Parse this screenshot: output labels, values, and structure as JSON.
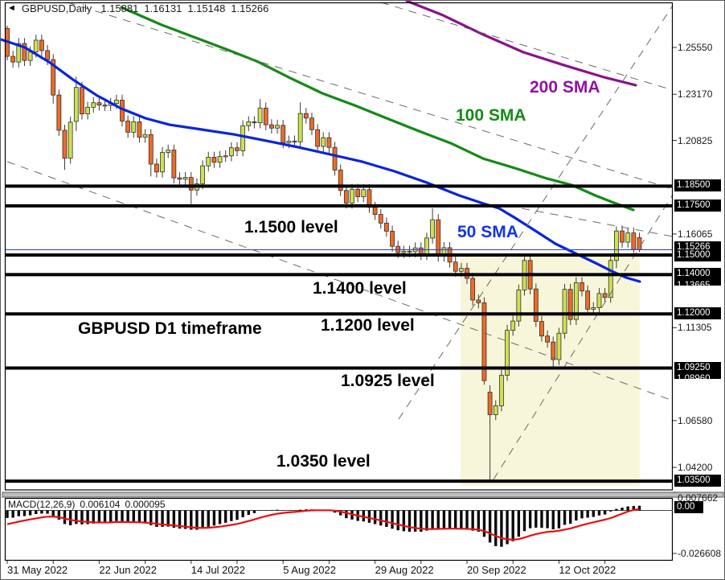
{
  "window": {
    "symbol_title": "GBPUSD,Daily",
    "open": "1.15881",
    "high": "1.16131",
    "low": "1.15148",
    "close": "1.15266"
  },
  "annotations": {
    "sma200_label": "200 SMA",
    "sma100_label": "100 SMA",
    "sma50_label": "50 SMA",
    "level_11500": "1.1500 level",
    "level_11400": "1.1400 level",
    "level_11200": "1.1200 level",
    "level_10925": "1.0925 level",
    "level_10350": "1.0350 level",
    "watermark": "GBPUSD D1 timeframe"
  },
  "colors": {
    "bull_candle": "#cde24e",
    "bear_candle": "#ee6b26",
    "candle_outline": "#2f2f2f",
    "wick": "#3a3a3a",
    "sma50": "#0b24dc",
    "sma100": "#168a16",
    "sma200": "#8b128b",
    "sma50_text": "#1434e4",
    "sma100_text": "#168a16",
    "sma200_text": "#9012a0",
    "level_line": "#000000",
    "current_price_line": "#2e46cf",
    "highlight": "#f8f6da",
    "trendline": "#6a6a6a",
    "macd_signal": "#e81010",
    "macd_bar": "#0a0a0a"
  },
  "price_axis": {
    "plain_ticks": [
      {
        "text": "1.25550",
        "price": 1.2555
      },
      {
        "text": "1.23170",
        "price": 1.2317
      },
      {
        "text": "1.20825",
        "price": 1.20825
      },
      {
        "text": "1.16065",
        "price": 1.16065
      },
      {
        "text": "1.11305",
        "price": 1.11305
      },
      {
        "text": "1.06580",
        "price": 1.0658
      },
      {
        "text": "1.04200",
        "price": 1.042
      }
    ],
    "boxed_labels": [
      {
        "text": "1.18500",
        "price": 1.185
      },
      {
        "text": "1.17500",
        "price": 1.175
      },
      {
        "text": "1.15266",
        "price": 1.15266,
        "dy": -10
      },
      {
        "text": "1.15000",
        "price": 1.15,
        "dy": -7
      },
      {
        "text": "1.14000",
        "price": 1.14
      },
      {
        "text": "1.13665",
        "price": 1.13665,
        "partial": true,
        "top": 347
      },
      {
        "text": "1.12000",
        "price": 1.12
      },
      {
        "text": "1.09250",
        "price": 1.0925
      },
      {
        "text": "1.08960",
        "price": 1.0896,
        "partial": true,
        "top": 463
      },
      {
        "text": "1.03500",
        "price": 1.035
      }
    ]
  },
  "time_axis": {
    "labels": [
      "31 May 2022",
      "22 Jun 2022",
      "14 Jul 2022",
      "5 Aug 2022",
      "29 Aug 2022",
      "20 Sep 2022",
      "12 Oct 2022"
    ],
    "tick_indices": [
      0,
      16,
      32,
      48,
      64,
      80,
      96
    ]
  },
  "macd_panel": {
    "name": "MACD(12,26,9)",
    "macd_value": "0.006104",
    "signal_value": "0.000095",
    "max_label": "0.007662",
    "zero_box": "0.00",
    "min_label": "-0.026608"
  },
  "chart_data": {
    "type": "candlestick",
    "symbol": "GBPUSD",
    "timeframe": "D1",
    "title": "GBPUSD Daily chart with 50/100/200 SMA, MACD(12,26,9), horizontal levels and trendlines",
    "ylim": [
      1.03,
      1.28
    ],
    "current_price": 1.15266,
    "price_levels": [
      1.185,
      1.175,
      1.15,
      1.14,
      1.12,
      1.0925,
      1.035
    ],
    "candles": [
      [
        1.2652,
        1.2666,
        1.249,
        1.251
      ],
      [
        1.251,
        1.2538,
        1.2453,
        1.2481
      ],
      [
        1.2481,
        1.2603,
        1.2453,
        1.2575
      ],
      [
        1.2575,
        1.2603,
        1.2461,
        1.2489
      ],
      [
        1.2489,
        1.256,
        1.2461,
        1.2532
      ],
      [
        1.2532,
        1.262,
        1.2504,
        1.2592
      ],
      [
        1.2592,
        1.262,
        1.2511,
        1.2539
      ],
      [
        1.2539,
        1.2567,
        1.2465,
        1.2493
      ],
      [
        1.2493,
        1.2521,
        1.227,
        1.2313
      ],
      [
        1.2313,
        1.2341,
        1.2106,
        1.2134
      ],
      [
        1.2134,
        1.2162,
        1.1933,
        1.1992
      ],
      [
        1.1992,
        1.2203,
        1.1964,
        1.2175
      ],
      [
        1.2179,
        1.2406,
        1.213,
        1.2352
      ],
      [
        1.2352,
        1.238,
        1.2189,
        1.2217
      ],
      [
        1.2217,
        1.2279,
        1.2189,
        1.2251
      ],
      [
        1.2251,
        1.2302,
        1.2223,
        1.2274
      ],
      [
        1.2274,
        1.2302,
        1.2234,
        1.2262
      ],
      [
        1.2262,
        1.229,
        1.2232,
        1.226
      ],
      [
        1.226,
        1.2298,
        1.2232,
        1.227
      ],
      [
        1.227,
        1.2315,
        1.2242,
        1.2287
      ],
      [
        1.2287,
        1.2315,
        1.2153,
        1.2181
      ],
      [
        1.2181,
        1.2209,
        1.2096,
        1.2124
      ],
      [
        1.2124,
        1.2205,
        1.2096,
        1.2177
      ],
      [
        1.2177,
        1.2205,
        1.2071,
        1.2099
      ],
      [
        1.2099,
        1.214,
        1.2071,
        1.2112
      ],
      [
        1.2112,
        1.214,
        1.1899,
        1.1962
      ],
      [
        1.1962,
        1.199,
        1.1894,
        1.1922
      ],
      [
        1.1922,
        1.2049,
        1.1894,
        1.2021
      ],
      [
        1.2021,
        1.2061,
        1.1993,
        1.2033
      ],
      [
        1.2033,
        1.2061,
        1.1864,
        1.1892
      ],
      [
        1.1892,
        1.192,
        1.1857,
        1.1885
      ],
      [
        1.1885,
        1.1922,
        1.1857,
        1.1894
      ],
      [
        1.1894,
        1.1922,
        1.176,
        1.183
      ],
      [
        1.183,
        1.189,
        1.1802,
        1.1862
      ],
      [
        1.1862,
        1.1981,
        1.1834,
        1.1953
      ],
      [
        1.1953,
        1.2025,
        1.1925,
        1.1997
      ],
      [
        1.1997,
        1.2025,
        1.1943,
        1.1971
      ],
      [
        1.1971,
        1.2029,
        1.1943,
        1.2001
      ],
      [
        1.2001,
        1.2032,
        1.1973,
        1.2004
      ],
      [
        1.2004,
        1.2073,
        1.1976,
        1.2045
      ],
      [
        1.2045,
        1.2073,
        1.2002,
        1.203
      ],
      [
        1.203,
        1.2185,
        1.2002,
        1.2157
      ],
      [
        1.2157,
        1.2205,
        1.2129,
        1.2177
      ],
      [
        1.2177,
        1.2205,
        1.2144,
        1.2172
      ],
      [
        1.2172,
        1.2293,
        1.2144,
        1.2247
      ],
      [
        1.2247,
        1.2275,
        1.2134,
        1.2162
      ],
      [
        1.2162,
        1.219,
        1.2117,
        1.2145
      ],
      [
        1.2145,
        1.2187,
        1.2117,
        1.2159
      ],
      [
        1.2159,
        1.2187,
        1.2043,
        1.2071
      ],
      [
        1.2071,
        1.2107,
        1.2043,
        1.2079
      ],
      [
        1.2079,
        1.2107,
        1.2047,
        1.2075
      ],
      [
        1.2075,
        1.2276,
        1.2047,
        1.2219
      ],
      [
        1.2219,
        1.2247,
        1.2168,
        1.2196
      ],
      [
        1.2196,
        1.2224,
        1.2109,
        1.2137
      ],
      [
        1.2137,
        1.2165,
        1.2024,
        1.2052
      ],
      [
        1.2052,
        1.2124,
        1.2024,
        1.2096
      ],
      [
        1.2096,
        1.2124,
        1.2019,
        1.2047
      ],
      [
        1.2047,
        1.2075,
        1.1904,
        1.1932
      ],
      [
        1.1932,
        1.196,
        1.18,
        1.1828
      ],
      [
        1.1828,
        1.1856,
        1.1736,
        1.1764
      ],
      [
        1.1764,
        1.1862,
        1.1736,
        1.1834
      ],
      [
        1.1834,
        1.1862,
        1.1768,
        1.1796
      ],
      [
        1.1796,
        1.186,
        1.1768,
        1.1832
      ],
      [
        1.1832,
        1.186,
        1.1714,
        1.1742
      ],
      [
        1.1742,
        1.177,
        1.1678,
        1.1706
      ],
      [
        1.1706,
        1.1734,
        1.1634,
        1.1662
      ],
      [
        1.1662,
        1.169,
        1.1593,
        1.1621
      ],
      [
        1.1621,
        1.1649,
        1.1516,
        1.1544
      ],
      [
        1.1544,
        1.1572,
        1.1484,
        1.1512
      ],
      [
        1.1512,
        1.1547,
        1.1484,
        1.1519
      ],
      [
        1.1519,
        1.1547,
        1.1488,
        1.1516
      ],
      [
        1.1516,
        1.1564,
        1.1488,
        1.1536
      ],
      [
        1.1536,
        1.1564,
        1.1474,
        1.1502
      ],
      [
        1.1502,
        1.1614,
        1.1474,
        1.1586
      ],
      [
        1.1586,
        1.1738,
        1.1558,
        1.1679
      ],
      [
        1.1679,
        1.1707,
        1.1466,
        1.1494
      ],
      [
        1.1494,
        1.1565,
        1.1466,
        1.1537
      ],
      [
        1.1537,
        1.1565,
        1.1436,
        1.1464
      ],
      [
        1.1464,
        1.1492,
        1.1389,
        1.1417
      ],
      [
        1.1417,
        1.146,
        1.1389,
        1.1432
      ],
      [
        1.1432,
        1.146,
        1.1353,
        1.1381
      ],
      [
        1.1381,
        1.1409,
        1.1243,
        1.1271
      ],
      [
        1.1271,
        1.1299,
        1.1229,
        1.1257
      ],
      [
        1.1257,
        1.1285,
        1.084,
        1.0861
      ],
      [
        1.0802,
        1.0838,
        1.035,
        1.0688
      ],
      [
        1.0688,
        1.0761,
        1.066,
        1.0733
      ],
      [
        1.0733,
        1.0916,
        1.0705,
        1.0888
      ],
      [
        1.0888,
        1.1145,
        1.086,
        1.1117
      ],
      [
        1.1117,
        1.1192,
        1.1089,
        1.1164
      ],
      [
        1.1164,
        1.135,
        1.1136,
        1.1322
      ],
      [
        1.1322,
        1.149,
        1.1294,
        1.1472
      ],
      [
        1.1472,
        1.15,
        1.1299,
        1.1327
      ],
      [
        1.1327,
        1.1355,
        1.1134,
        1.1162
      ],
      [
        1.1162,
        1.119,
        1.106,
        1.1088
      ],
      [
        1.1088,
        1.1116,
        1.1029,
        1.1057
      ],
      [
        1.1057,
        1.1085,
        1.0923,
        1.0968
      ],
      [
        1.0968,
        1.113,
        1.094,
        1.1102
      ],
      [
        1.1102,
        1.1353,
        1.1074,
        1.1325
      ],
      [
        1.1325,
        1.1353,
        1.1144,
        1.1172
      ],
      [
        1.1172,
        1.1387,
        1.1144,
        1.1359
      ],
      [
        1.1359,
        1.1387,
        1.1289,
        1.1317
      ],
      [
        1.1317,
        1.1345,
        1.1196,
        1.1224
      ],
      [
        1.1224,
        1.126,
        1.1196,
        1.1232
      ],
      [
        1.1232,
        1.1332,
        1.1204,
        1.1304
      ],
      [
        1.1304,
        1.1332,
        1.1256,
        1.1284
      ],
      [
        1.1284,
        1.15,
        1.1256,
        1.1472
      ],
      [
        1.1472,
        1.1645,
        1.1433,
        1.1622
      ],
      [
        1.1622,
        1.165,
        1.1537,
        1.1565
      ],
      [
        1.1565,
        1.164,
        1.1537,
        1.1612
      ],
      [
        1.1612,
        1.164,
        1.15,
        1.1528
      ],
      [
        1.15881,
        1.16131,
        1.15148,
        1.15266
      ]
    ],
    "overlays": {
      "sma50": {
        "legend": "50 SMA",
        "points": [
          [
            0,
            1.2596
          ],
          [
            30,
            1.2555
          ],
          [
            60,
            1.2481
          ],
          [
            90,
            1.2391
          ],
          [
            120,
            1.231
          ],
          [
            150,
            1.2244
          ],
          [
            180,
            1.2195
          ],
          [
            210,
            1.2162
          ],
          [
            250,
            1.2138
          ],
          [
            290,
            1.2113
          ],
          [
            330,
            1.2081
          ],
          [
            370,
            1.2048
          ],
          [
            410,
            1.2011
          ],
          [
            450,
            1.1974
          ],
          [
            490,
            1.1925
          ],
          [
            530,
            1.1868
          ],
          [
            570,
            1.1803
          ],
          [
            600,
            1.1762
          ],
          [
            620,
            1.1737
          ],
          [
            640,
            1.1688
          ],
          [
            665,
            1.1623
          ],
          [
            690,
            1.1557
          ],
          [
            715,
            1.1508
          ],
          [
            740,
            1.1459
          ],
          [
            760,
            1.1418
          ],
          [
            778,
            1.1385
          ],
          [
            795,
            1.1365
          ]
        ]
      },
      "sma100": {
        "legend": "100 SMA",
        "points": [
          [
            150,
            1.2759
          ],
          [
            200,
            1.267
          ],
          [
            240,
            1.2608
          ],
          [
            280,
            1.2547
          ],
          [
            320,
            1.2482
          ],
          [
            360,
            1.24
          ],
          [
            400,
            1.2322
          ],
          [
            440,
            1.2261
          ],
          [
            480,
            1.2195
          ],
          [
            520,
            1.213
          ],
          [
            560,
            1.2068
          ],
          [
            600,
            1.199
          ],
          [
            640,
            1.1941
          ],
          [
            680,
            1.1888
          ],
          [
            710,
            1.1856
          ],
          [
            740,
            1.1802
          ],
          [
            765,
            1.1762
          ],
          [
            787,
            1.1729
          ]
        ]
      },
      "sma200": {
        "legend": "200 SMA",
        "points": [
          [
            505,
            1.2792
          ],
          [
            550,
            1.2719
          ],
          [
            600,
            1.2621
          ],
          [
            650,
            1.2531
          ],
          [
            700,
            1.2466
          ],
          [
            750,
            1.2404
          ],
          [
            790,
            1.2363
          ]
        ]
      }
    },
    "trendlines": [
      {
        "x1": 8,
        "y1": 200,
        "x2": 836,
        "y2": 497
      },
      {
        "x1": 83,
        "y1": 2,
        "x2": 836,
        "y2": 234
      },
      {
        "x1": 473,
        "y1": 2,
        "x2": 836,
        "y2": 111
      },
      {
        "x1": 613,
        "y1": 595,
        "x2": 836,
        "y2": 241
      },
      {
        "x1": 495,
        "y1": 520,
        "x2": 836,
        "y2": 6
      },
      {
        "x1": 648,
        "y1": 258,
        "x2": 836,
        "y2": 293
      }
    ],
    "highlight_region": {
      "x1": 572,
      "y1": 318,
      "x2": 795,
      "y2": 603
    },
    "macd": {
      "fast": 12,
      "slow": 26,
      "signal": 9,
      "macd_current": 0.006104,
      "signal_current": 9.5e-05,
      "scale_max": 0.007662,
      "scale_min": -0.026608
    }
  }
}
